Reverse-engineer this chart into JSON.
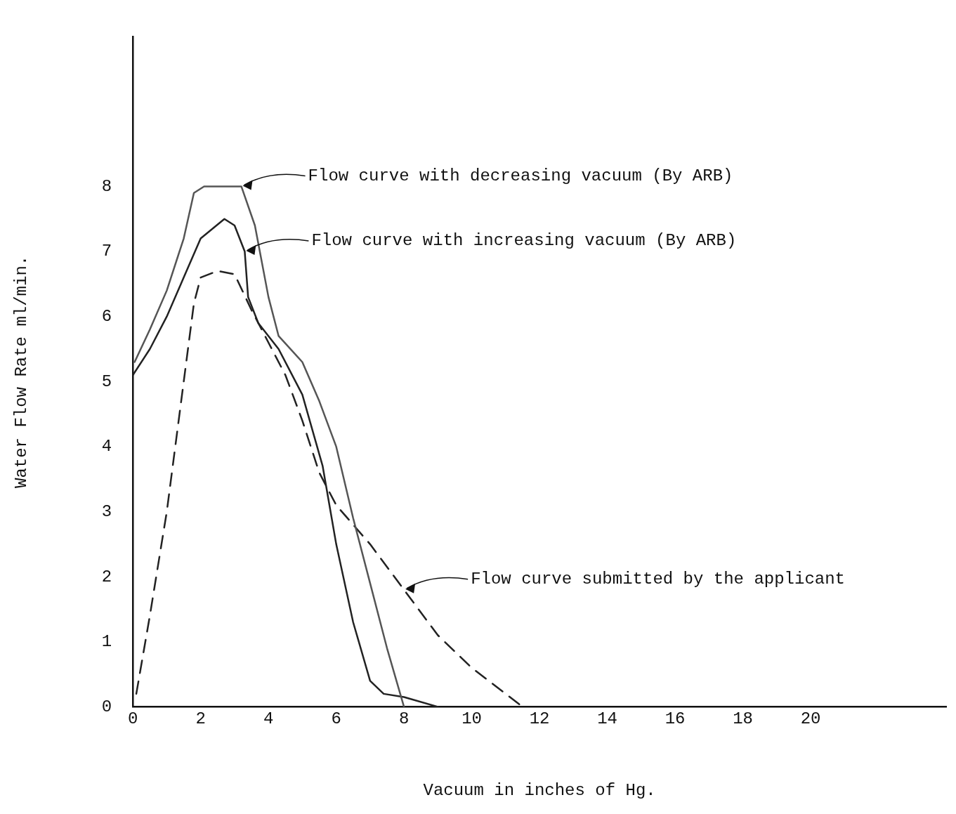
{
  "chart_data": {
    "type": "line",
    "xlabel": "Vacuum in inches of Hg.",
    "ylabel": "Water Flow Rate ml/min.",
    "xlim": [
      0,
      24
    ],
    "xticks": [
      0,
      2,
      4,
      6,
      8,
      10,
      12,
      14,
      16,
      18,
      20
    ],
    "ylim": [
      0,
      10.3
    ],
    "yticks": [
      0,
      1,
      2,
      3,
      4,
      5,
      6,
      7,
      8
    ],
    "grid": false,
    "legend": false,
    "marker": "none",
    "series": [
      {
        "color": "#555555",
        "line_style": "solid",
        "x": [
          0.05,
          0.5,
          1.0,
          1.5,
          1.8,
          2.1,
          3.2,
          3.6,
          4.0,
          4.3,
          5.0,
          5.5,
          6.0,
          6.5,
          7.0,
          7.5,
          8.0
        ],
        "values": [
          5.3,
          5.8,
          6.4,
          7.2,
          7.9,
          8.0,
          8.0,
          7.4,
          6.3,
          5.7,
          5.3,
          4.7,
          4.0,
          2.9,
          1.9,
          0.9,
          0
        ]
      },
      {
        "color": "#222222",
        "line_style": "solid",
        "x": [
          0,
          0.5,
          1.0,
          1.5,
          2.0,
          2.7,
          3.0,
          3.3,
          3.4,
          3.7,
          4.3,
          5.0,
          5.6,
          6.0,
          6.5,
          7.0,
          7.4,
          8.0,
          9.0
        ],
        "values": [
          5.1,
          5.5,
          6.0,
          6.6,
          7.2,
          7.5,
          7.4,
          7.0,
          6.3,
          5.9,
          5.5,
          4.8,
          3.7,
          2.5,
          1.3,
          0.4,
          0.2,
          0.15,
          0
        ]
      },
      {
        "color": "#222222",
        "line_style": "dashed",
        "x": [
          0.1,
          0.5,
          1.0,
          1.5,
          1.8,
          2.0,
          2.5,
          3.0,
          3.5,
          4.0,
          4.5,
          5.0,
          5.5,
          6.0,
          7.0,
          8.0,
          9.0,
          10.0,
          11.5
        ],
        "values": [
          0.2,
          1.4,
          3.0,
          5.0,
          6.2,
          6.6,
          6.7,
          6.65,
          6.1,
          5.6,
          5.1,
          4.4,
          3.6,
          3.1,
          2.5,
          1.8,
          1.1,
          0.6,
          0
        ]
      }
    ],
    "annotations": [
      {
        "text": "Flow curve with decreasing vacuum (By ARB)",
        "x": 3.2,
        "y": 8.0
      },
      {
        "text": "Flow curve with increasing vacuum (By ARB)",
        "x": 3.3,
        "y": 7.0
      },
      {
        "text": "Flow curve submitted by the applicant",
        "x": 8.0,
        "y": 1.8
      }
    ]
  }
}
